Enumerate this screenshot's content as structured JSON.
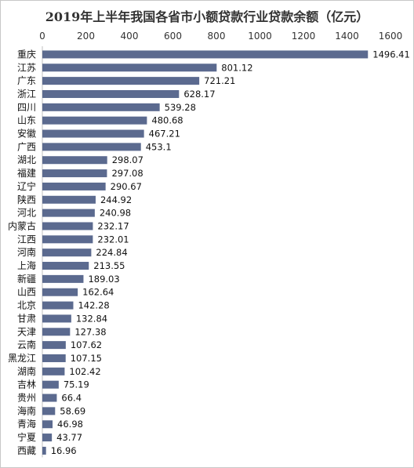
{
  "chart_data": {
    "type": "bar",
    "orientation": "horizontal",
    "title": "2019年上半年我国各省市小额贷款行业贷款余额（亿元）",
    "xlim": [
      0,
      1600
    ],
    "xticks": [
      0,
      200,
      400,
      600,
      800,
      1000,
      1200,
      1400,
      1600
    ],
    "axis_position": "top",
    "grid": false,
    "legend": "none",
    "bar_color": "#5b6a8f",
    "categories": [
      "重庆",
      "江苏",
      "广东",
      "浙江",
      "四川",
      "山东",
      "安徽",
      "广西",
      "湖北",
      "福建",
      "辽宁",
      "陕西",
      "河北",
      "内蒙古",
      "江西",
      "河南",
      "上海",
      "新疆",
      "山西",
      "北京",
      "甘肃",
      "天津",
      "云南",
      "黑龙江",
      "湖南",
      "吉林",
      "贵州",
      "海南",
      "青海",
      "宁夏",
      "西藏"
    ],
    "values": [
      1496.41,
      801.12,
      721.21,
      628.17,
      539.28,
      480.68,
      467.21,
      453.1,
      298.07,
      297.08,
      290.67,
      244.92,
      240.98,
      232.17,
      232.01,
      224.84,
      213.55,
      189.03,
      162.64,
      142.28,
      132.84,
      127.38,
      107.62,
      107.15,
      102.42,
      75.19,
      66.4,
      58.69,
      46.98,
      43.77,
      16.96
    ],
    "value_labels": [
      "1496.41",
      "801.12",
      "721.21",
      "628.17",
      "539.28",
      "480.68",
      "467.21",
      "453.1",
      "298.07",
      "297.08",
      "290.67",
      "244.92",
      "240.98",
      "232.17",
      "232.01",
      "224.84",
      "213.55",
      "189.03",
      "162.64",
      "142.28",
      "132.84",
      "127.38",
      "107.62",
      "107.15",
      "102.42",
      "75.19",
      "66.4",
      "58.69",
      "46.98",
      "43.77",
      "16.96"
    ]
  }
}
